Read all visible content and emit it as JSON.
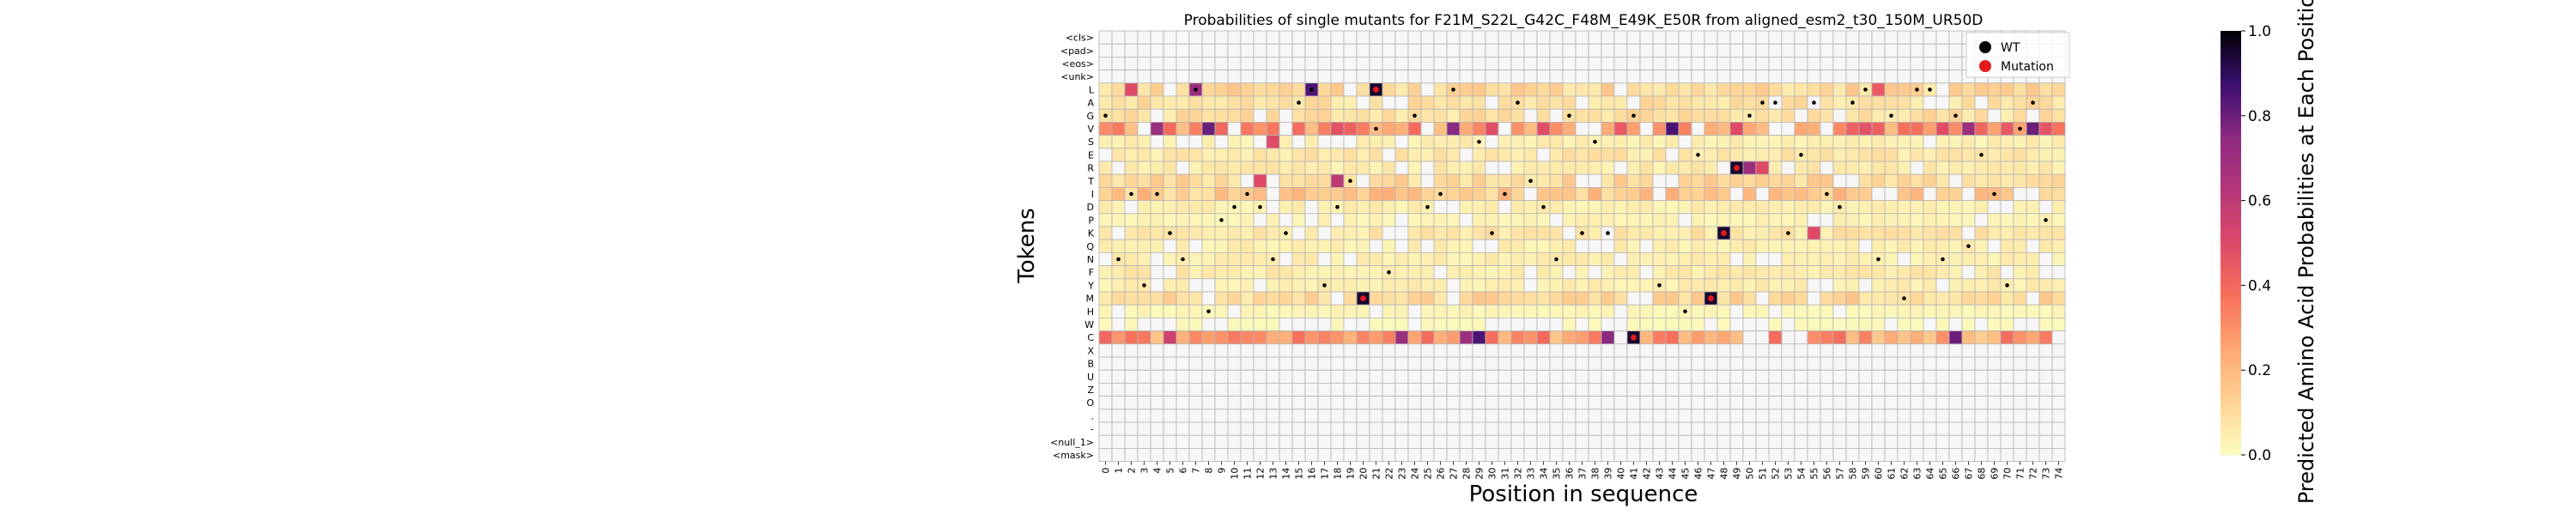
{
  "chart_data": {
    "type": "heatmap",
    "title": "Probabilities of single mutants for F21M_S22L_G42C_F48M_E49K_E50R from aligned_esm2_t30_150M_UR50D",
    "xlabel": "Position in sequence",
    "ylabel": "Tokens",
    "colorbar_label": "Predicted Amino Acid Probabilities at Each Position",
    "colorbar_ticks": [
      "0.0",
      "0.2",
      "0.4",
      "0.6",
      "0.8",
      "1.0"
    ],
    "colorbar_range": [
      0,
      1
    ],
    "colormap": "magma_r",
    "grid": true,
    "tokens": [
      "<cls>",
      "<pad>",
      "<eos>",
      "<unk>",
      "L",
      "A",
      "G",
      "V",
      "S",
      "E",
      "R",
      "T",
      "I",
      "D",
      "P",
      "K",
      "Q",
      "N",
      "F",
      "Y",
      "M",
      "H",
      "W",
      "C",
      "X",
      "B",
      "U",
      "Z",
      "O",
      ".",
      "-",
      "<null_1>",
      "<mask>"
    ],
    "positions": [
      "0",
      "1",
      "2",
      "3",
      "4",
      "5",
      "6",
      "7",
      "8",
      "9",
      "10",
      "11",
      "12",
      "13",
      "14",
      "15",
      "16",
      "17",
      "18",
      "19",
      "20",
      "21",
      "22",
      "23",
      "24",
      "25",
      "26",
      "27",
      "28",
      "29",
      "30",
      "31",
      "32",
      "33",
      "34",
      "35",
      "36",
      "37",
      "38",
      "39",
      "40",
      "41",
      "42",
      "43",
      "44",
      "45",
      "46",
      "47",
      "48",
      "49",
      "50",
      "51",
      "52",
      "53",
      "54",
      "55",
      "56",
      "57",
      "58",
      "59",
      "60",
      "61",
      "62",
      "63",
      "64",
      "65",
      "66",
      "67",
      "68",
      "69",
      "70",
      "71",
      "72",
      "73",
      "74"
    ],
    "legend": {
      "placement": "top-right",
      "entries": [
        {
          "label": "WT",
          "color": "#000000"
        },
        {
          "label": "Mutation",
          "color": "#e31a1c"
        }
      ]
    },
    "rows_default": {
      "L": 0.1,
      "A": 0.08,
      "G": 0.08,
      "V": 0.32,
      "S": 0.04,
      "E": 0.06,
      "R": 0.05,
      "T": 0.1,
      "I": 0.14,
      "D": 0.04,
      "P": 0.03,
      "K": 0.06,
      "Q": 0.04,
      "N": 0.04,
      "F": 0.05,
      "Y": 0.04,
      "M": 0.1,
      "H": 0.02,
      "W": 0.01,
      "C": 0.26
    },
    "special_values": [
      {
        "token": "L",
        "position": 21,
        "value": 0.95
      },
      {
        "token": "L",
        "position": 16,
        "value": 0.85
      },
      {
        "token": "L",
        "position": 7,
        "value": 0.7
      },
      {
        "token": "L",
        "position": 2,
        "value": 0.5
      },
      {
        "token": "L",
        "position": 60,
        "value": 0.45
      },
      {
        "token": "V",
        "position": 8,
        "value": 0.8
      },
      {
        "token": "V",
        "position": 27,
        "value": 0.75
      },
      {
        "token": "V",
        "position": 44,
        "value": 0.85
      },
      {
        "token": "V",
        "position": 72,
        "value": 0.8
      },
      {
        "token": "V",
        "position": 4,
        "value": 0.7
      },
      {
        "token": "V",
        "position": 67,
        "value": 0.7
      },
      {
        "token": "R",
        "position": 49,
        "value": 0.95
      },
      {
        "token": "R",
        "position": 50,
        "value": 0.7
      },
      {
        "token": "R",
        "position": 51,
        "value": 0.5
      },
      {
        "token": "K",
        "position": 48,
        "value": 0.95
      },
      {
        "token": "K",
        "position": 55,
        "value": 0.5
      },
      {
        "token": "M",
        "position": 20,
        "value": 0.95
      },
      {
        "token": "M",
        "position": 47,
        "value": 0.95
      },
      {
        "token": "S",
        "position": 13,
        "value": 0.5
      },
      {
        "token": "T",
        "position": 12,
        "value": 0.5
      },
      {
        "token": "T",
        "position": 18,
        "value": 0.6
      },
      {
        "token": "C",
        "position": 41,
        "value": 0.95
      },
      {
        "token": "C",
        "position": 29,
        "value": 0.85
      },
      {
        "token": "C",
        "position": 66,
        "value": 0.8
      },
      {
        "token": "C",
        "position": 39,
        "value": 0.75
      },
      {
        "token": "C",
        "position": 23,
        "value": 0.7
      },
      {
        "token": "C",
        "position": 28,
        "value": 0.7
      },
      {
        "token": "C",
        "position": 5,
        "value": 0.55
      }
    ],
    "wt_dots": [
      {
        "token": "G",
        "position": 0
      },
      {
        "token": "N",
        "position": 1
      },
      {
        "token": "I",
        "position": 2
      },
      {
        "token": "Y",
        "position": 3
      },
      {
        "token": "I",
        "position": 4
      },
      {
        "token": "K",
        "position": 5
      },
      {
        "token": "N",
        "position": 6
      },
      {
        "token": "L",
        "position": 7
      },
      {
        "token": "H",
        "position": 8
      },
      {
        "token": "P",
        "position": 9
      },
      {
        "token": "D",
        "position": 10
      },
      {
        "token": "I",
        "position": 11
      },
      {
        "token": "D",
        "position": 12
      },
      {
        "token": "N",
        "position": 13
      },
      {
        "token": "K",
        "position": 14
      },
      {
        "token": "A",
        "position": 15
      },
      {
        "token": "L",
        "position": 16
      },
      {
        "token": "Y",
        "position": 17
      },
      {
        "token": "D",
        "position": 18
      },
      {
        "token": "T",
        "position": 19
      },
      {
        "token": "V",
        "position": 21
      },
      {
        "token": "F",
        "position": 22
      },
      {
        "token": "G",
        "position": 24
      },
      {
        "token": "D",
        "position": 25
      },
      {
        "token": "I",
        "position": 26
      },
      {
        "token": "L",
        "position": 27
      },
      {
        "token": "S",
        "position": 29
      },
      {
        "token": "K",
        "position": 30
      },
      {
        "token": "I",
        "position": 31
      },
      {
        "token": "A",
        "position": 32
      },
      {
        "token": "T",
        "position": 33
      },
      {
        "token": "D",
        "position": 34
      },
      {
        "token": "N",
        "position": 35
      },
      {
        "token": "G",
        "position": 36
      },
      {
        "token": "K",
        "position": 37
      },
      {
        "token": "S",
        "position": 38
      },
      {
        "token": "K",
        "position": 39
      },
      {
        "token": "G",
        "position": 41
      },
      {
        "token": "Y",
        "position": 43
      },
      {
        "token": "H",
        "position": 45
      },
      {
        "token": "E",
        "position": 46
      },
      {
        "token": "G",
        "position": 50
      },
      {
        "token": "A",
        "position": 51
      },
      {
        "token": "A",
        "position": 52
      },
      {
        "token": "K",
        "position": 53
      },
      {
        "token": "E",
        "position": 54
      },
      {
        "token": "A",
        "position": 55
      },
      {
        "token": "I",
        "position": 56
      },
      {
        "token": "D",
        "position": 57
      },
      {
        "token": "A",
        "position": 58
      },
      {
        "token": "L",
        "position": 59
      },
      {
        "token": "N",
        "position": 60
      },
      {
        "token": "G",
        "position": 61
      },
      {
        "token": "M",
        "position": 62
      },
      {
        "token": "L",
        "position": 63
      },
      {
        "token": "L",
        "position": 64
      },
      {
        "token": "N",
        "position": 65
      },
      {
        "token": "G",
        "position": 66
      },
      {
        "token": "Q",
        "position": 67
      },
      {
        "token": "E",
        "position": 68
      },
      {
        "token": "I",
        "position": 69
      },
      {
        "token": "Y",
        "position": 70
      },
      {
        "token": "V",
        "position": 71
      },
      {
        "token": "A",
        "position": 72
      },
      {
        "token": "P",
        "position": 73
      }
    ],
    "mutation_dots": [
      {
        "token": "M",
        "position": 20
      },
      {
        "token": "L",
        "position": 21
      },
      {
        "token": "C",
        "position": 41
      },
      {
        "token": "M",
        "position": 47
      },
      {
        "token": "K",
        "position": 48
      },
      {
        "token": "R",
        "position": 49
      }
    ]
  }
}
